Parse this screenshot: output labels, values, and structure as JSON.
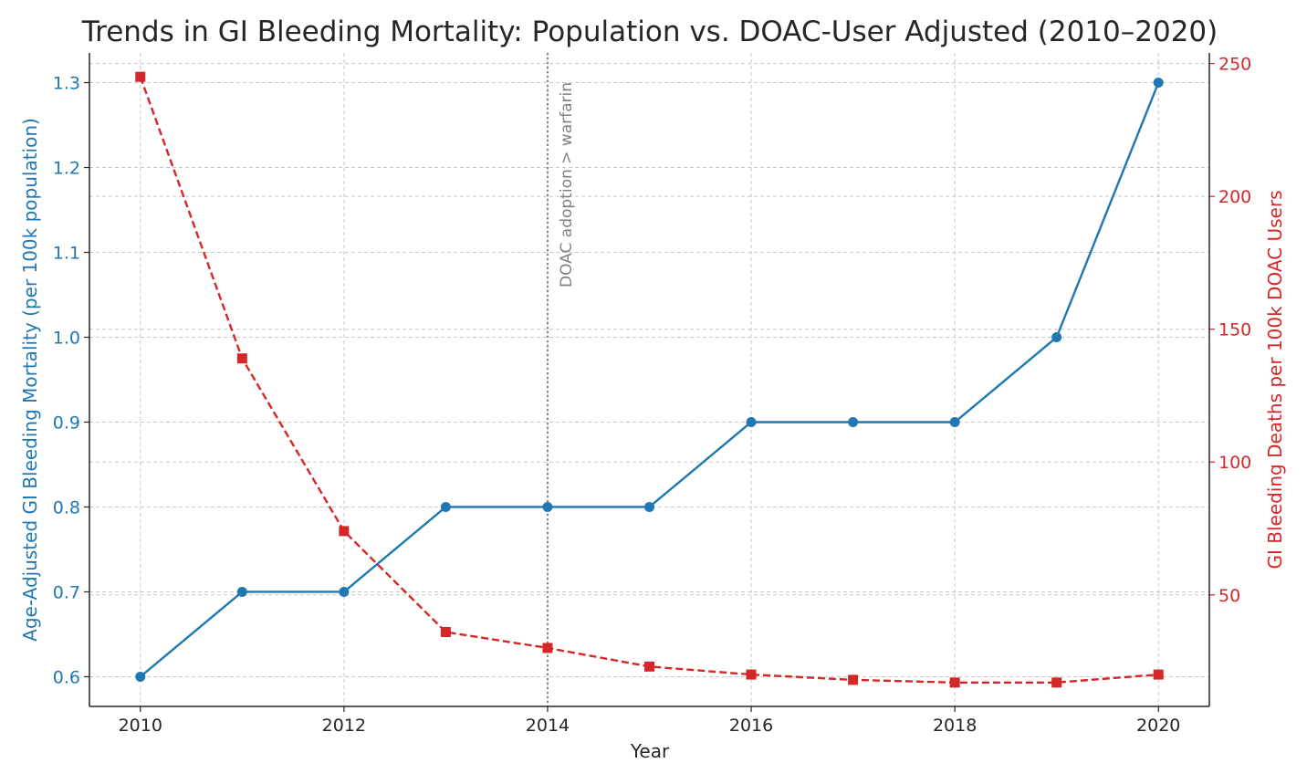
{
  "chart_data": {
    "type": "line",
    "title": "Trends in GI Bleeding Mortality: Population vs. DOAC-User Adjusted (2010–2020)",
    "xlabel": "Year",
    "ylabel_left": "Age-Adjusted GI Bleeding Mortality (per 100k population)",
    "ylabel_right": "GI Bleeding Deaths per 100k DOAC Users",
    "x": [
      2010,
      2011,
      2012,
      2013,
      2014,
      2015,
      2016,
      2017,
      2018,
      2019,
      2020
    ],
    "x_ticks": [
      2010,
      2012,
      2014,
      2016,
      2018,
      2020
    ],
    "xlim": [
      2009.5,
      2020.5
    ],
    "ylim_left": [
      0.565,
      1.335
    ],
    "ylim_right": [
      8,
      254
    ],
    "y_ticks_left": [
      "0.6",
      "0.7",
      "0.8",
      "0.9",
      "1.0",
      "1.1",
      "1.2",
      "1.3"
    ],
    "y_ticks_right": [
      "50",
      "100",
      "150",
      "200",
      "250"
    ],
    "series": [
      {
        "axis": "left",
        "color": "#1f77b4",
        "line_style": "solid",
        "marker": "circle",
        "values": [
          0.6,
          0.7,
          0.7,
          0.8,
          0.8,
          0.8,
          0.9,
          0.9,
          0.9,
          1.0,
          1.3
        ]
      },
      {
        "axis": "right",
        "color": "#d62728",
        "line_style": "dashed",
        "marker": "square",
        "values": [
          245,
          139,
          74,
          36,
          30,
          23,
          20,
          18,
          17,
          17,
          20
        ]
      }
    ],
    "annotations": [
      {
        "x": 2014,
        "text": "DOAC adoption > warfarin",
        "style": "dotted-vertical-line",
        "color": "#808080"
      }
    ],
    "grid": true,
    "legend": "none"
  }
}
